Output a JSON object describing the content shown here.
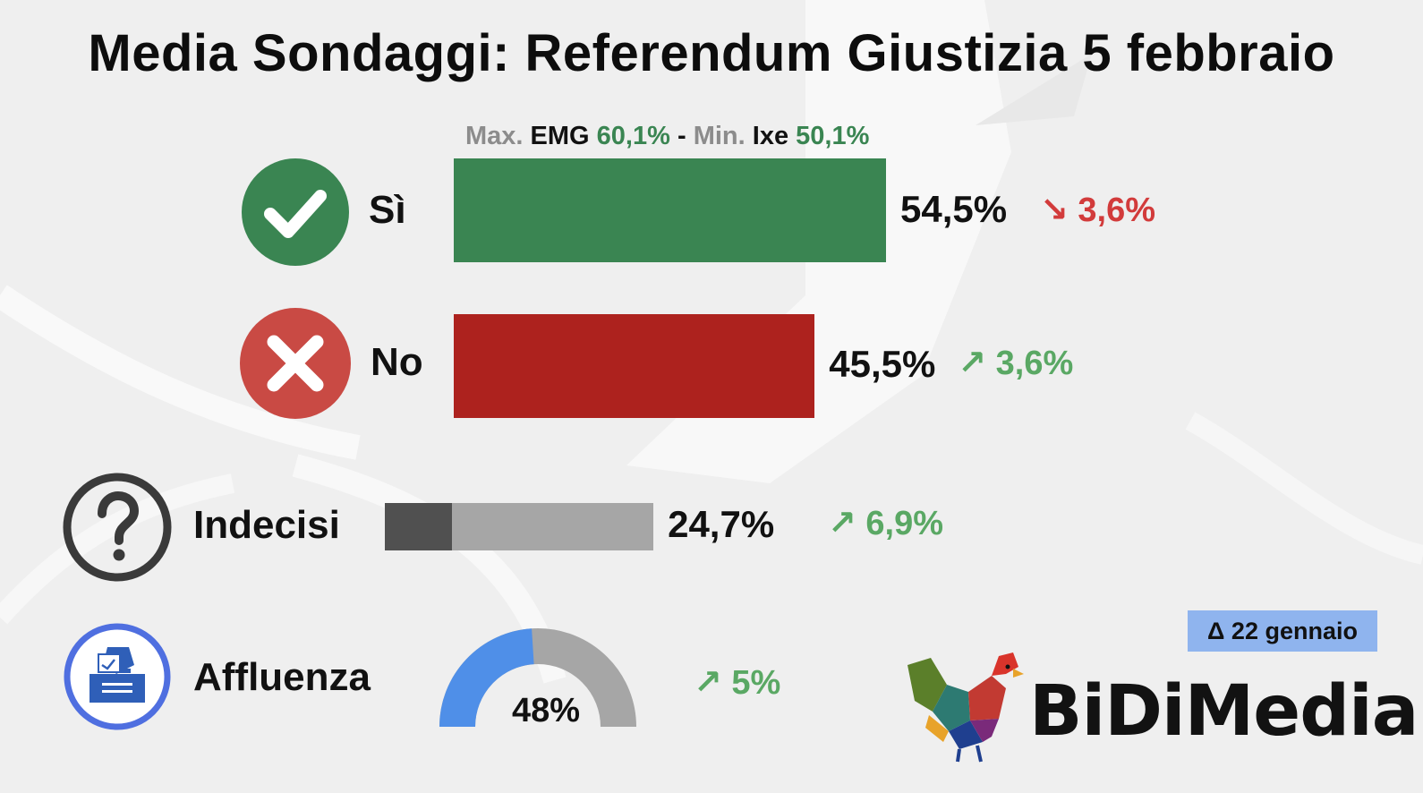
{
  "title": "Media Sondaggi: Referendum Giustizia 5 febbraio",
  "range_note": {
    "max_label": "Max.",
    "max_source": "EMG",
    "max_value": "60,1%",
    "separator": "-",
    "min_label": "Min.",
    "min_source": "Ixe",
    "min_value": "50,1%"
  },
  "colors": {
    "si": "#3a8552",
    "no": "#ad221e",
    "indecisi_dark": "#505050",
    "indecisi_light": "#a6a6a6",
    "affluenza": "#4f8fe8",
    "delta_down": "#d23b3b",
    "delta_up": "#5aa864",
    "badge": "#8fb4ee"
  },
  "rows": {
    "si": {
      "label": "Sì",
      "value_text": "54,5%",
      "delta": "↘ 3,6%",
      "icon": "check-circle-icon"
    },
    "no": {
      "label": "No",
      "value_text": "45,5%",
      "delta": "↗ 3,6%",
      "icon": "x-circle-icon"
    },
    "indecisi": {
      "label": "Indecisi",
      "value_text": "24,7%",
      "delta": "↗ 6,9%",
      "icon": "question-circle-icon"
    },
    "affluenza": {
      "label": "Affluenza",
      "value_text": "48%",
      "delta": "↗ 5%",
      "icon": "ballot-box-icon"
    }
  },
  "badge": "Δ 22 gennaio",
  "brand": "BiDiMedia",
  "chart_data": {
    "type": "bar",
    "title": "Media Sondaggi: Referendum Giustizia 5 febbraio",
    "categories": [
      "Sì",
      "No",
      "Indecisi"
    ],
    "values": [
      54.5,
      45.5,
      24.7
    ],
    "changes_vs_22_gennaio": [
      -3.6,
      3.6,
      6.9
    ],
    "unit": "%",
    "indecisi_change": 6.9,
    "affluenza": {
      "value": 48,
      "change": 5,
      "type": "gauge"
    },
    "range": {
      "max": {
        "source": "EMG",
        "value": 60.1
      },
      "min": {
        "source": "Ixe",
        "value": 50.1
      }
    }
  }
}
